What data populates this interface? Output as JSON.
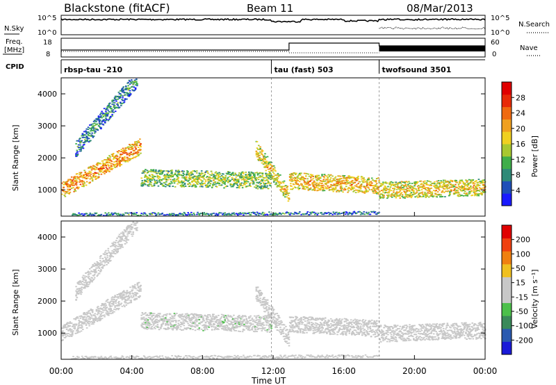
{
  "header": {
    "station": "Blackstone (fitACF)",
    "beam": "Beam 11",
    "date": "08/Mar/2013"
  },
  "noise_panel": {
    "left_label": "N.Sky",
    "right_label": "N.Search",
    "left_ticks": [
      "10^5",
      "10^0"
    ],
    "right_ticks": [
      "10^5",
      "10^0"
    ]
  },
  "freq_panel": {
    "label_line1": "Freq.",
    "label_line2": "[MHz]",
    "left_ticks": [
      "18",
      "8"
    ],
    "right_ticks": [
      "60",
      "0"
    ],
    "right_label": "Nave"
  },
  "cpid_panel": {
    "label": "CPID",
    "programs": [
      "rbsp-tau -210",
      "tau (fast) 503",
      "twofsound 3501"
    ]
  },
  "power_panel": {
    "ylabel": "Slant Range [km]",
    "yticks": [
      "4000",
      "3000",
      "2000",
      "1000"
    ],
    "colorbar_label": "Power [dB]",
    "colorbar_ticks": [
      "28",
      "24",
      "20",
      "16",
      "12",
      "8",
      "4"
    ],
    "colors": [
      "#1a1aff",
      "#1f4fb8",
      "#2f8a78",
      "#3fae4a",
      "#a8c830",
      "#f0d020",
      "#f0a020",
      "#f06a10",
      "#e82a08",
      "#e00000"
    ]
  },
  "velocity_panel": {
    "ylabel": "Slant Range [km]",
    "yticks": [
      "4000",
      "3000",
      "2000",
      "1000"
    ],
    "colorbar_label": "Velocity [m s⁻¹]",
    "colorbar_ticks": [
      "200",
      "100",
      "50",
      "15",
      "-15",
      "-50",
      "-100",
      "-200"
    ],
    "colors": [
      "#1a1ad8",
      "#2a5ab0",
      "#3a8a5a",
      "#4cc04a",
      "#c8c8c8",
      "#c8c8c8",
      "#f0c020",
      "#f08010",
      "#f04010",
      "#e00000"
    ]
  },
  "xaxis": {
    "label": "Time UT",
    "ticks": [
      "00:00",
      "04:00",
      "08:00",
      "12:00",
      "16:00",
      "20:00",
      "00:00"
    ]
  },
  "chart_data": {
    "type": "heatmap",
    "title": "Blackstone (fitACF)  Beam 11  08/Mar/2013",
    "xlabel": "Time UT",
    "x_range_hours": [
      0,
      24
    ],
    "y_range_km": [
      180,
      4500
    ],
    "series": [
      {
        "name": "Power [dB]",
        "range": [
          0,
          30
        ]
      },
      {
        "name": "Velocity [m s⁻¹]",
        "range": [
          -250,
          250
        ]
      }
    ],
    "programs": [
      {
        "name": "rbsp-tau -210",
        "start_h": 0.0,
        "end_h": 11.9
      },
      {
        "name": "tau (fast) 503",
        "start_h": 11.9,
        "end_h": 18.0
      },
      {
        "name": "twofsound 3501",
        "start_h": 18.0,
        "end_h": 24.0
      }
    ],
    "echo_bands": [
      {
        "t_start": 0.0,
        "t_end": 4.5,
        "r_start": 1000,
        "r_end": 2400,
        "power_db": 22,
        "velocity": 0
      },
      {
        "t_start": 0.8,
        "t_end": 4.3,
        "r_start": 2300,
        "r_end": 4500,
        "power_db": 8,
        "velocity": -10
      },
      {
        "t_start": 4.5,
        "t_end": 11.9,
        "r_start": 1400,
        "r_end": 1300,
        "power_db": 14,
        "velocity": 25
      },
      {
        "t_start": 11.0,
        "t_end": 12.9,
        "r_start": 2300,
        "r_end": 800,
        "power_db": 18,
        "velocity": 15
      },
      {
        "t_start": 12.9,
        "t_end": 18.0,
        "r_start": 1300,
        "r_end": 1150,
        "power_db": 20,
        "velocity": 0
      },
      {
        "t_start": 18.0,
        "t_end": 24.0,
        "r_start": 1000,
        "r_end": 1100,
        "power_db": 18,
        "velocity": -20
      },
      {
        "t_start": 0.5,
        "t_end": 18.0,
        "r_start": 250,
        "r_end": 300,
        "power_db": 6,
        "velocity": 10
      }
    ]
  }
}
